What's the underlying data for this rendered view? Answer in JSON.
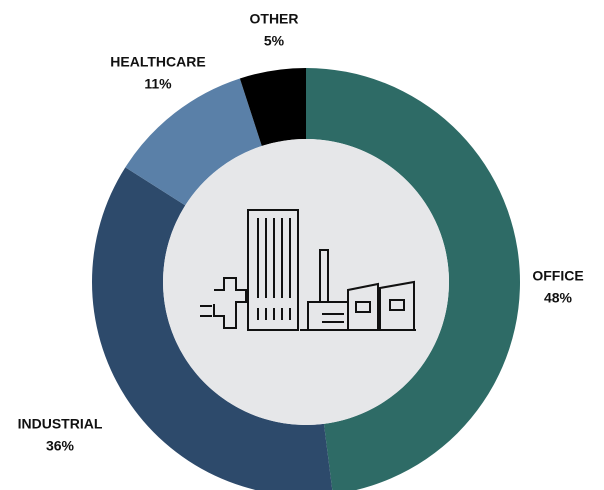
{
  "chart_data": {
    "type": "donut",
    "categories": [
      "OFFICE",
      "INDUSTRIAL",
      "HEALTHCARE",
      "OTHER"
    ],
    "values": [
      48,
      36,
      11,
      5
    ],
    "value_labels": [
      "48%",
      "36%",
      "11%",
      "5%"
    ],
    "colors": [
      "#2e6b66",
      "#2d4a6b",
      "#5a80a8",
      "#000000"
    ]
  }
}
